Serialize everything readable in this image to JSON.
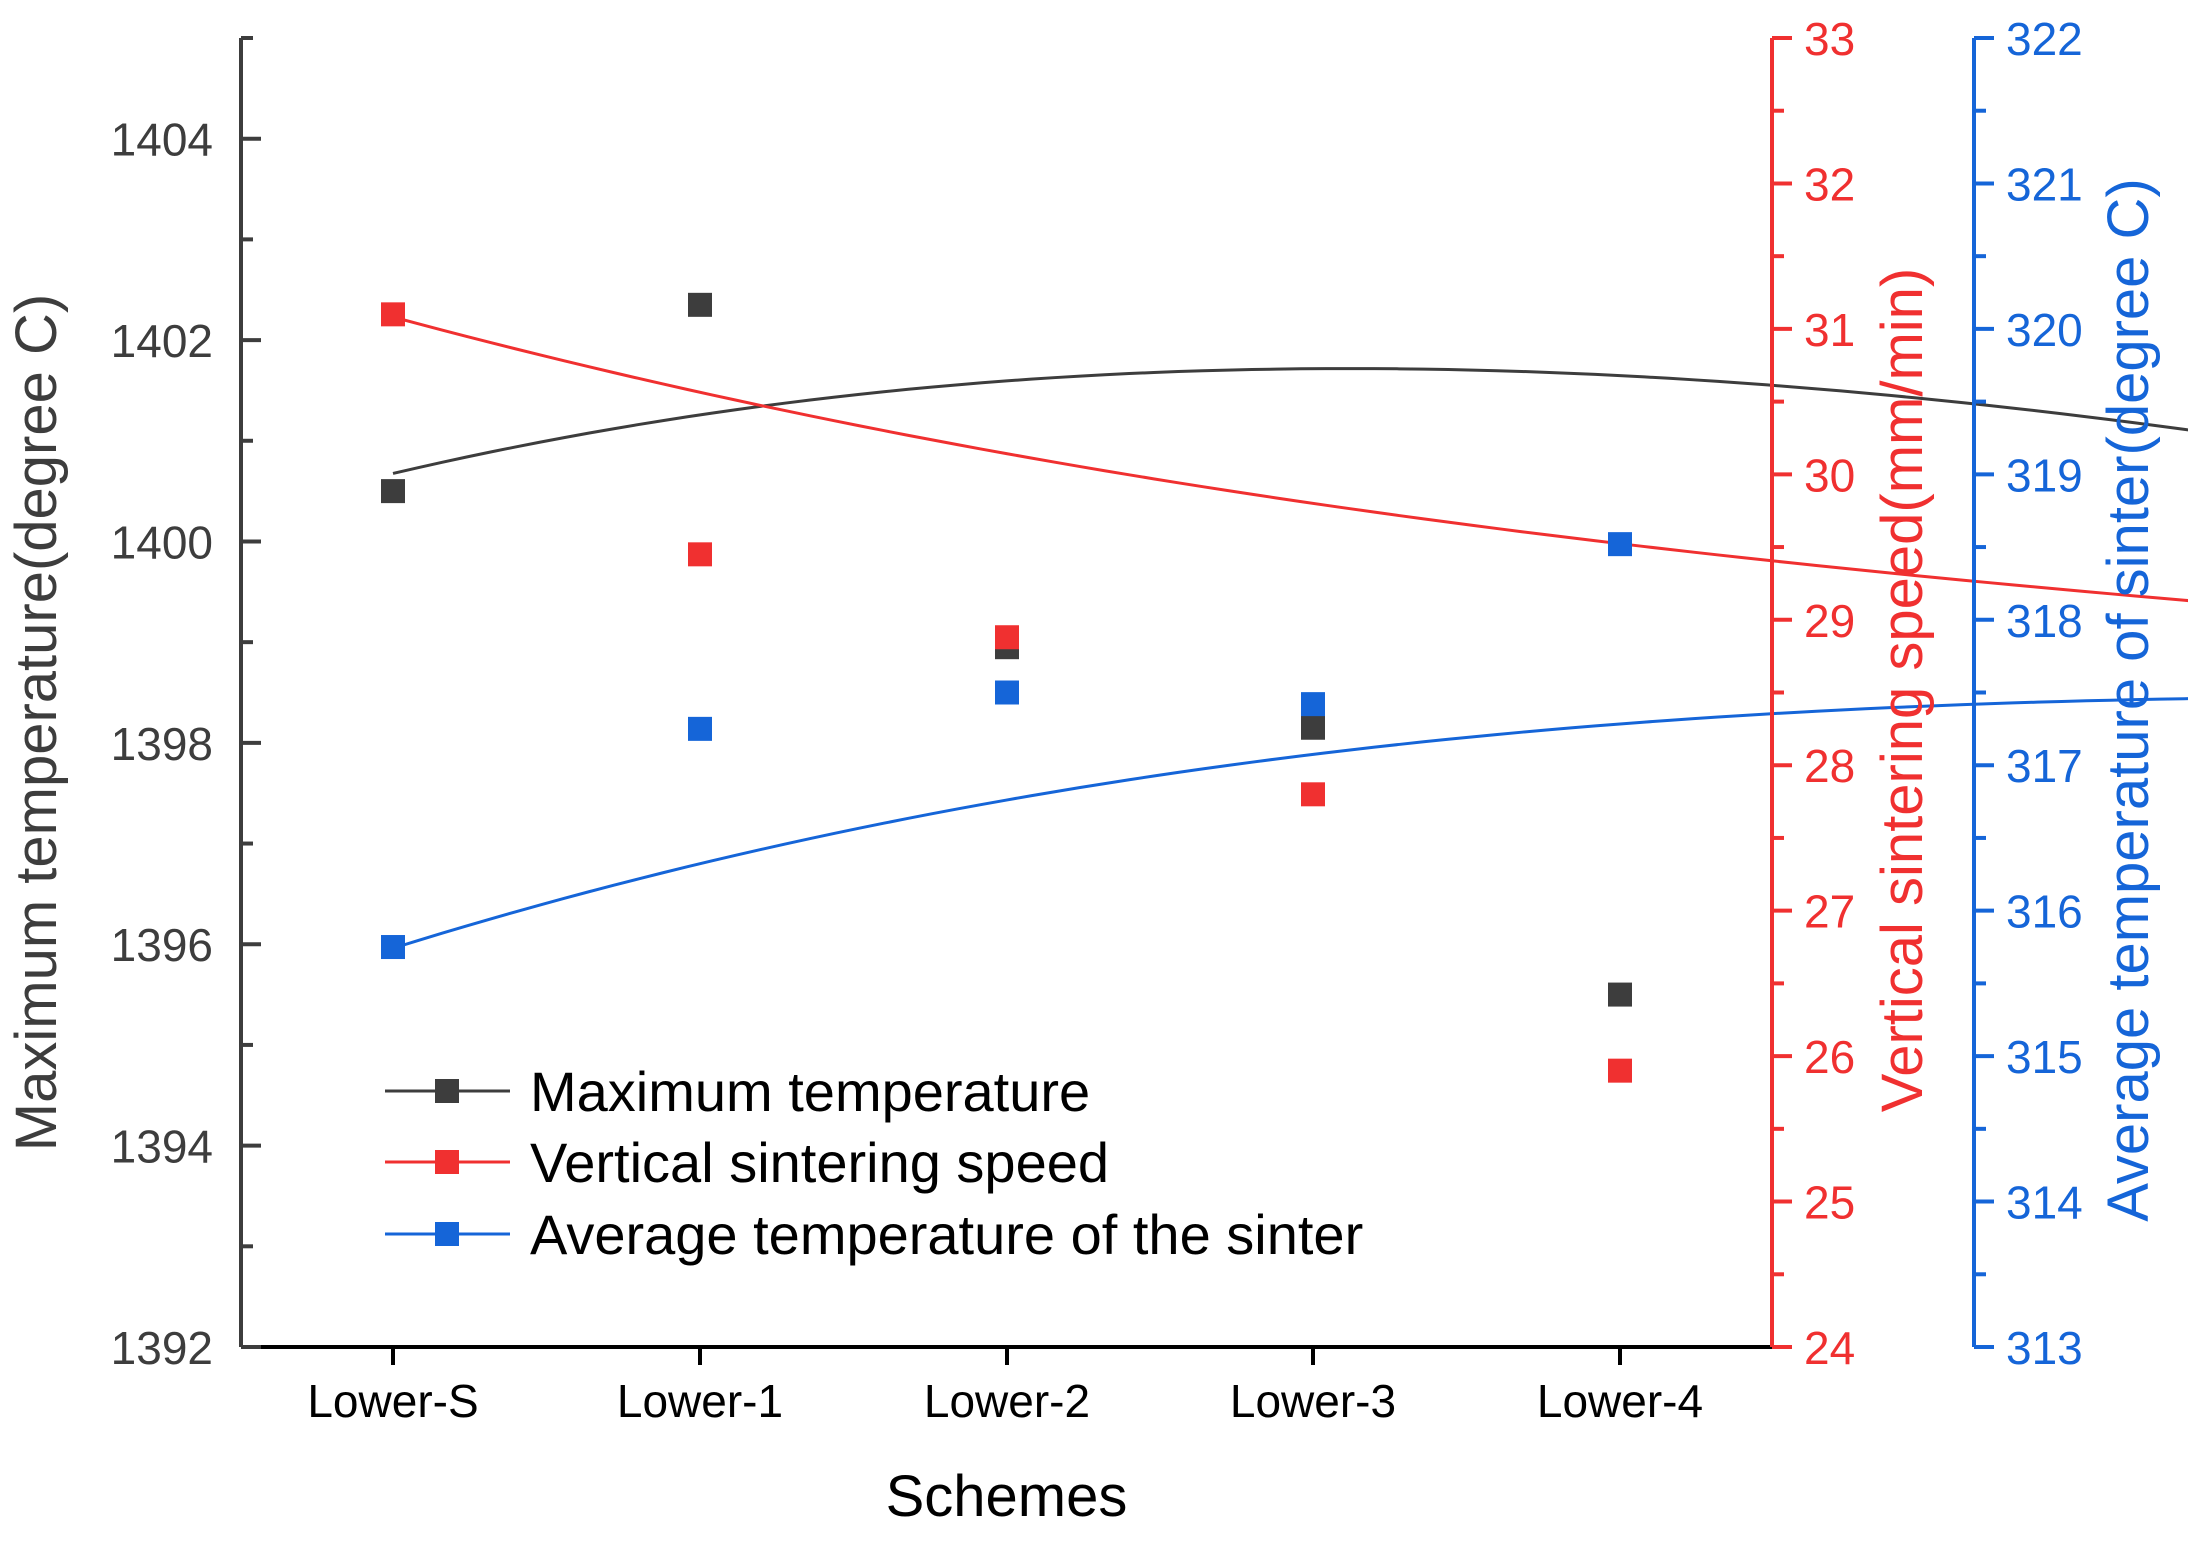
{
  "chart_data": {
    "type": "line",
    "title": "",
    "xlabel": "Schemes",
    "categories": [
      "Lower-S",
      "Lower-1",
      "Lower-2",
      "Lower-3",
      "Lower-4"
    ],
    "axes": {
      "left": {
        "label": "Maximum temperature(degree C)",
        "ylim": [
          1392,
          1405
        ],
        "ticks": [
          1392,
          1394,
          1396,
          1398,
          1400,
          1402,
          1404
        ],
        "color": "#3d3d3d"
      },
      "right": {
        "label": "Vertical sintering speed(mm/min)",
        "ylim": [
          24,
          33
        ],
        "ticks": [
          24,
          25,
          26,
          27,
          28,
          29,
          30,
          31,
          32,
          33
        ],
        "color": "#f03030"
      },
      "right2": {
        "label": "Average temperature of sinter(degree C)",
        "ylim": [
          313,
          322
        ],
        "ticks": [
          313,
          314,
          315,
          316,
          317,
          318,
          319,
          320,
          321,
          322
        ],
        "color": "#1565d8"
      }
    },
    "series": [
      {
        "name": "Maximum temperature",
        "axis": "left",
        "color": "#3d3d3d",
        "values": [
          1400.5,
          1402.35,
          1398.95,
          1398.15,
          1395.5
        ]
      },
      {
        "name": "Vertical sintering speed",
        "axis": "right",
        "color": "#f03030",
        "values": [
          31.1,
          29.45,
          28.88,
          27.8,
          25.9
        ]
      },
      {
        "name": "Average temperature of the sinter",
        "axis": "right2",
        "color": "#1565d8",
        "values": [
          315.75,
          317.25,
          317.5,
          317.42,
          318.52
        ]
      }
    ],
    "legend": {
      "position": "bottom-left"
    }
  }
}
